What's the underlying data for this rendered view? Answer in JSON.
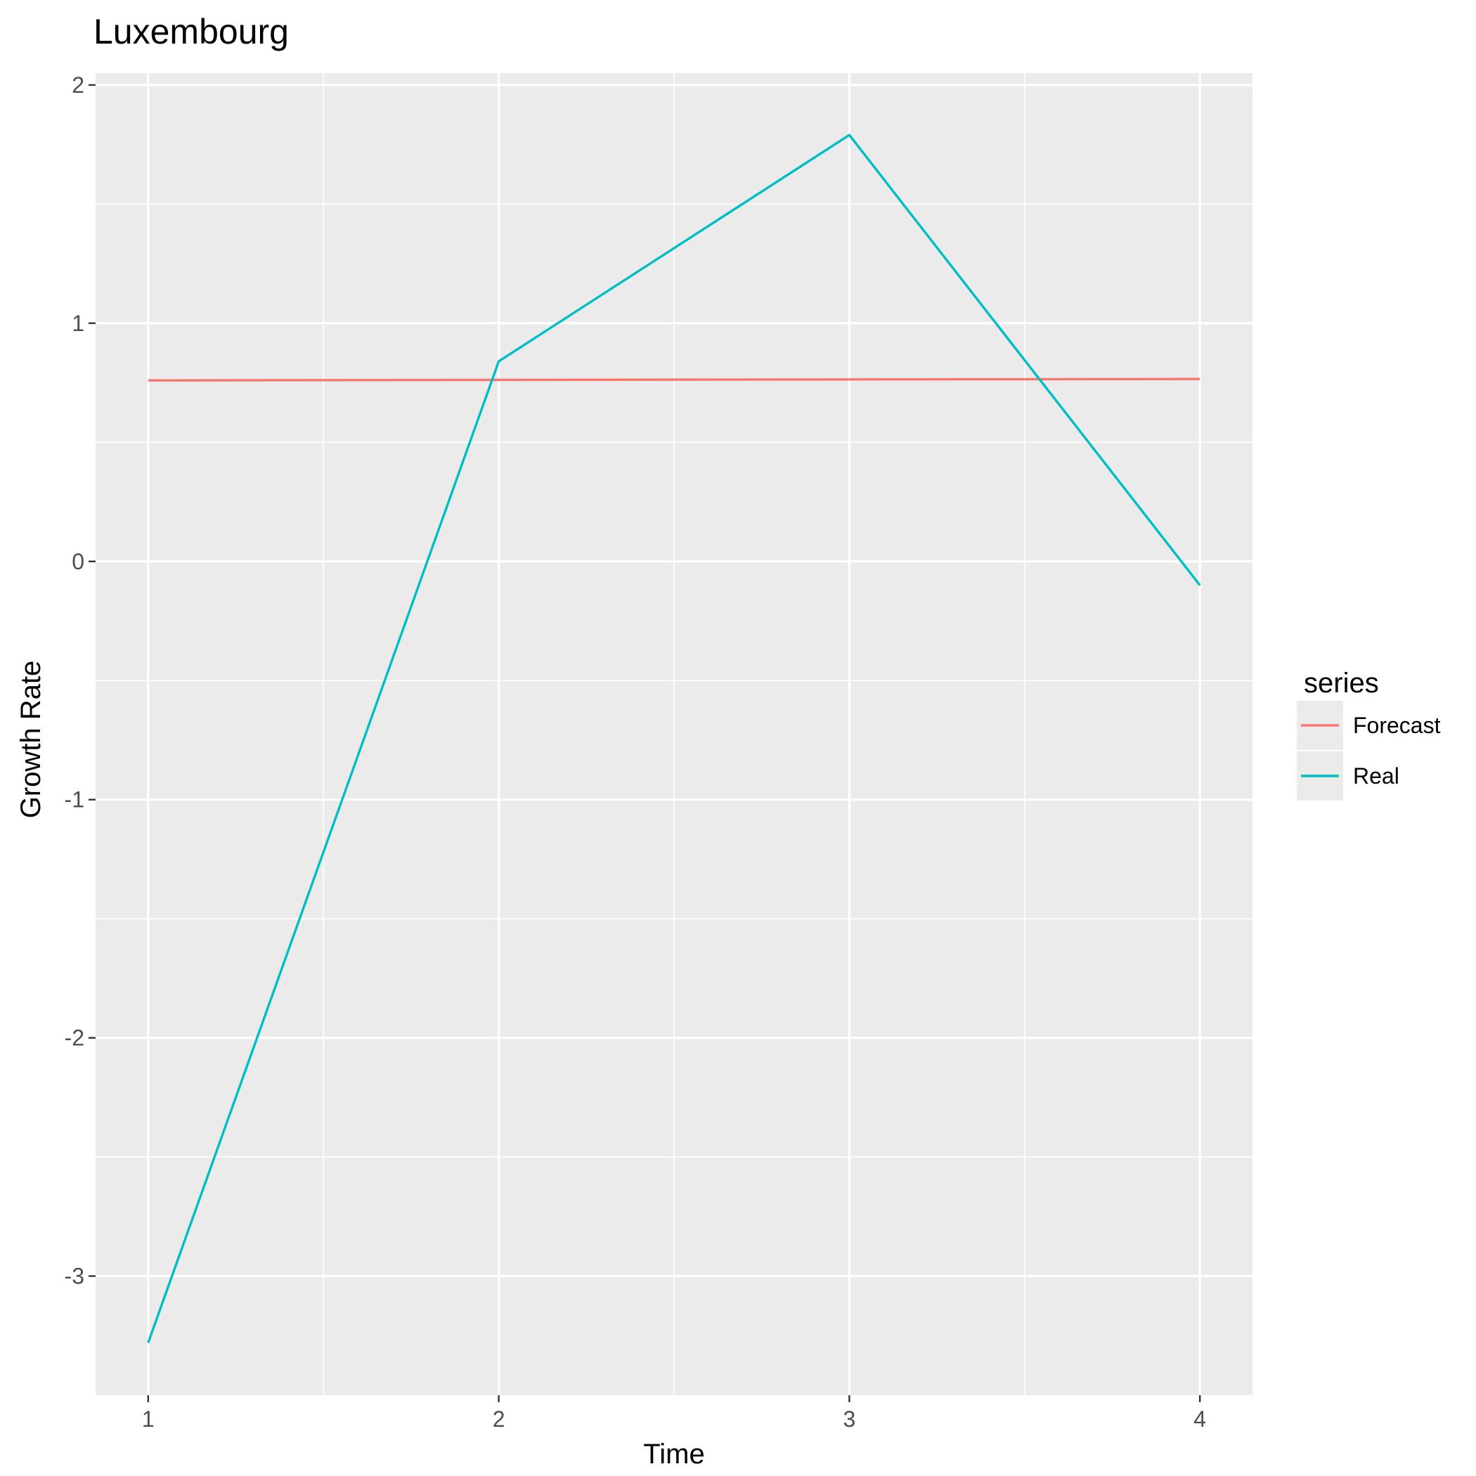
{
  "chart_data": {
    "type": "line",
    "title": "Luxembourg",
    "xlabel": "Time",
    "ylabel": "Growth Rate",
    "x": [
      1,
      2,
      3,
      4
    ],
    "x_ticks": [
      "1",
      "2",
      "3",
      "4"
    ],
    "y_ticks": [
      "2",
      "1",
      "0",
      "-1",
      "-2",
      "-3"
    ],
    "xlim": [
      0.85,
      4.15
    ],
    "ylim": [
      -3.5,
      2.05
    ],
    "grid": true,
    "legend_title": "series",
    "legend_position": "right",
    "series": [
      {
        "name": "Forecast",
        "color": "#f8766d",
        "values": [
          0.76,
          0.762,
          0.764,
          0.766
        ]
      },
      {
        "name": "Real",
        "color": "#00bfc4",
        "values": [
          -3.28,
          0.84,
          1.79,
          -0.1
        ]
      }
    ]
  }
}
